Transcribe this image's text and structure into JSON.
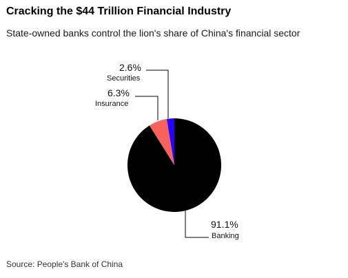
{
  "title": "Cracking the $44 Trillion Financial Industry",
  "subtitle": "State-owned banks control the lion's share of China's financial sector",
  "source": "Source: People's Bank of China",
  "chart_data": {
    "type": "pie",
    "start_angle_deg": 0,
    "direction": "clockwise",
    "slices": [
      {
        "label": "Banking",
        "value": 91.1,
        "display": "91.1%",
        "color": "#000000"
      },
      {
        "label": "Insurance",
        "value": 6.3,
        "display": "6.3%",
        "color": "#f7635c"
      },
      {
        "label": "Securities",
        "value": 2.6,
        "display": "2.6%",
        "color": "#2800ff"
      }
    ]
  }
}
